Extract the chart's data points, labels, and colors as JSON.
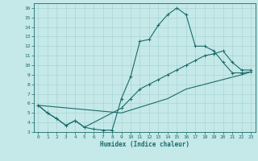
{
  "xlabel": "Humidex (Indice chaleur)",
  "xlim": [
    -0.5,
    23.5
  ],
  "ylim": [
    3,
    16.5
  ],
  "xticks": [
    0,
    1,
    2,
    3,
    4,
    5,
    6,
    7,
    8,
    9,
    10,
    11,
    12,
    13,
    14,
    15,
    16,
    17,
    18,
    19,
    20,
    21,
    22,
    23
  ],
  "yticks": [
    3,
    4,
    5,
    6,
    7,
    8,
    9,
    10,
    11,
    12,
    13,
    14,
    15,
    16
  ],
  "bg_color": "#c5e8e8",
  "grid_color": "#aad4d4",
  "line_color": "#1a6b6b",
  "curve1_x": [
    0,
    1,
    2,
    3,
    4,
    5,
    6,
    7,
    8,
    9,
    10,
    11,
    12,
    13,
    14,
    15,
    16,
    17,
    18,
    19,
    20,
    21,
    22,
    23
  ],
  "curve1_y": [
    5.8,
    5.0,
    4.4,
    3.7,
    4.2,
    3.5,
    3.3,
    3.2,
    3.2,
    6.5,
    8.8,
    12.5,
    12.7,
    14.2,
    15.3,
    16.0,
    15.3,
    12.0,
    12.0,
    11.5,
    10.3,
    9.2,
    9.2,
    9.3
  ],
  "curve2_x": [
    0,
    1,
    2,
    3,
    4,
    5,
    9,
    10,
    11,
    12,
    13,
    14,
    15,
    16,
    17,
    18,
    19,
    20,
    21,
    22,
    23
  ],
  "curve2_y": [
    5.8,
    5.0,
    4.4,
    3.7,
    4.2,
    3.5,
    5.5,
    6.5,
    7.5,
    8.0,
    8.5,
    9.0,
    9.5,
    10.0,
    10.5,
    11.0,
    11.2,
    11.5,
    10.3,
    9.5,
    9.5
  ],
  "curve3_x": [
    0,
    9,
    14,
    16,
    18,
    20,
    22,
    23
  ],
  "curve3_y": [
    5.8,
    5.0,
    6.5,
    7.5,
    8.0,
    8.5,
    9.0,
    9.3
  ]
}
